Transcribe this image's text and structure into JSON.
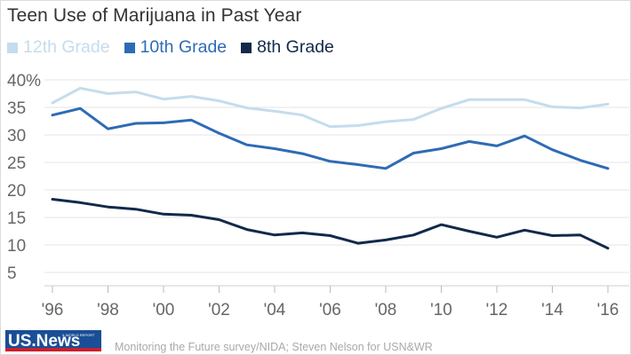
{
  "chart_data": {
    "type": "line",
    "title": "Teen Use of Marijuana in Past Year",
    "x": [
      1996,
      1997,
      1998,
      1999,
      2000,
      2001,
      2002,
      2003,
      2004,
      2005,
      2006,
      2007,
      2008,
      2009,
      2010,
      2011,
      2012,
      2013,
      2014,
      2015,
      2016
    ],
    "x_tick_labels": [
      "'96",
      "'98",
      "'00",
      "'02",
      "'04",
      "'06",
      "'08",
      "'10",
      "'12",
      "'14",
      "'16"
    ],
    "x_tick_values": [
      1996,
      1998,
      2000,
      2002,
      2004,
      2006,
      2008,
      2010,
      2012,
      2014,
      2016
    ],
    "y_tick_labels": [
      "40%",
      "35",
      "30",
      "25",
      "20",
      "15",
      "10",
      "5"
    ],
    "y_tick_values": [
      40,
      35,
      30,
      25,
      20,
      15,
      10,
      5
    ],
    "ylim": [
      5,
      40
    ],
    "xlim": [
      1996,
      2016
    ],
    "grid": true,
    "legend_position": "top-left",
    "series": [
      {
        "name": "12th Grade",
        "color": "#c5dced",
        "values": [
          35.8,
          38.5,
          37.5,
          37.8,
          36.5,
          37.0,
          36.2,
          34.9,
          34.3,
          33.6,
          31.5,
          31.7,
          32.4,
          32.8,
          34.8,
          36.4,
          36.4,
          36.4,
          35.1,
          34.9,
          35.6
        ]
      },
      {
        "name": "10th Grade",
        "color": "#2e6bb5",
        "values": [
          33.6,
          34.8,
          31.1,
          32.1,
          32.2,
          32.7,
          30.3,
          28.2,
          27.5,
          26.6,
          25.2,
          24.6,
          23.9,
          26.7,
          27.5,
          28.8,
          28.0,
          29.8,
          27.3,
          25.4,
          23.9
        ]
      },
      {
        "name": "8th Grade",
        "color": "#13294b",
        "values": [
          18.3,
          17.7,
          16.9,
          16.5,
          15.6,
          15.4,
          14.6,
          12.8,
          11.8,
          12.2,
          11.7,
          10.3,
          10.9,
          11.8,
          13.7,
          12.5,
          11.4,
          12.7,
          11.7,
          11.8,
          9.4
        ]
      }
    ]
  },
  "footer": {
    "logo_text": "US.News",
    "logo_small_text": "& WORLD REPORT",
    "source": "Monitoring the Future survey/NIDA; Steven Nelson for USN&WR"
  }
}
